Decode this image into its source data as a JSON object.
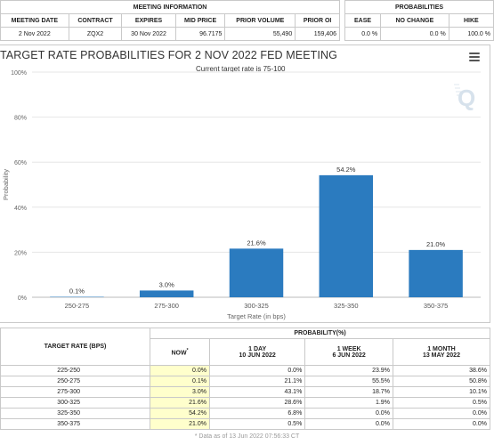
{
  "meeting_info": {
    "section_header": "MEETING INFORMATION",
    "columns": [
      "MEETING DATE",
      "CONTRACT",
      "EXPIRES",
      "MID PRICE",
      "PRIOR VOLUME",
      "PRIOR OI"
    ],
    "row": [
      "2 Nov 2022",
      "ZQX2",
      "30 Nov 2022",
      "96.7175",
      "55,490",
      "159,406"
    ]
  },
  "probabilities": {
    "section_header": "PROBABILITIES",
    "columns": [
      "EASE",
      "NO CHANGE",
      "HIKE"
    ],
    "row": [
      "0.0 %",
      "0.0 %",
      "100.0 %"
    ]
  },
  "chart_panel": {
    "title": "TARGET RATE PROBABILITIES FOR 2 NOV 2022 FED MEETING",
    "subtitle": "Current target rate is 75-100",
    "menu_icon": "hamburger-menu-icon",
    "watermark_icon": "cme-q-logo-icon"
  },
  "chart_data": {
    "type": "bar",
    "title": "TARGET RATE PROBABILITIES FOR 2 NOV 2022 FED MEETING",
    "subtitle": "Current target rate is 75-100",
    "categories": [
      "250-275",
      "275-300",
      "300-325",
      "325-350",
      "350-375"
    ],
    "values": [
      0.1,
      3.0,
      21.6,
      54.2,
      21.0
    ],
    "data_labels": [
      "0.1%",
      "3.0%",
      "21.6%",
      "54.2%",
      "21.0%"
    ],
    "xlabel": "Target Rate (in bps)",
    "ylabel": "Probability",
    "ylim": [
      0,
      100
    ],
    "yticks": [
      "0%",
      "20%",
      "40%",
      "60%",
      "80%",
      "100%"
    ],
    "grid": true,
    "bar_color": "#2b7bbf"
  },
  "prob_table": {
    "rate_header": "TARGET RATE (BPS)",
    "group_header": "PROBABILITY(%)",
    "now_header": "NOW",
    "now_marker": "*",
    "col_headers": [
      {
        "line1": "1 DAY",
        "line2": "10 JUN 2022"
      },
      {
        "line1": "1 WEEK",
        "line2": "6 JUN 2022"
      },
      {
        "line1": "1 MONTH",
        "line2": "13 MAY 2022"
      }
    ],
    "rows": [
      {
        "rate": "225-250",
        "now": "0.0%",
        "day": "0.0%",
        "week": "23.9%",
        "month": "38.6%"
      },
      {
        "rate": "250-275",
        "now": "0.1%",
        "day": "21.1%",
        "week": "55.5%",
        "month": "50.8%"
      },
      {
        "rate": "275-300",
        "now": "3.0%",
        "day": "43.1%",
        "week": "18.7%",
        "month": "10.1%"
      },
      {
        "rate": "300-325",
        "now": "21.6%",
        "day": "28.6%",
        "week": "1.9%",
        "month": "0.5%"
      },
      {
        "rate": "325-350",
        "now": "54.2%",
        "day": "6.8%",
        "week": "0.0%",
        "month": "0.0%"
      },
      {
        "rate": "350-375",
        "now": "21.0%",
        "day": "0.5%",
        "week": "0.0%",
        "month": "0.0%"
      }
    ],
    "footnote": "* Data as of 13 Jun 2022 07:56:33 CT"
  }
}
